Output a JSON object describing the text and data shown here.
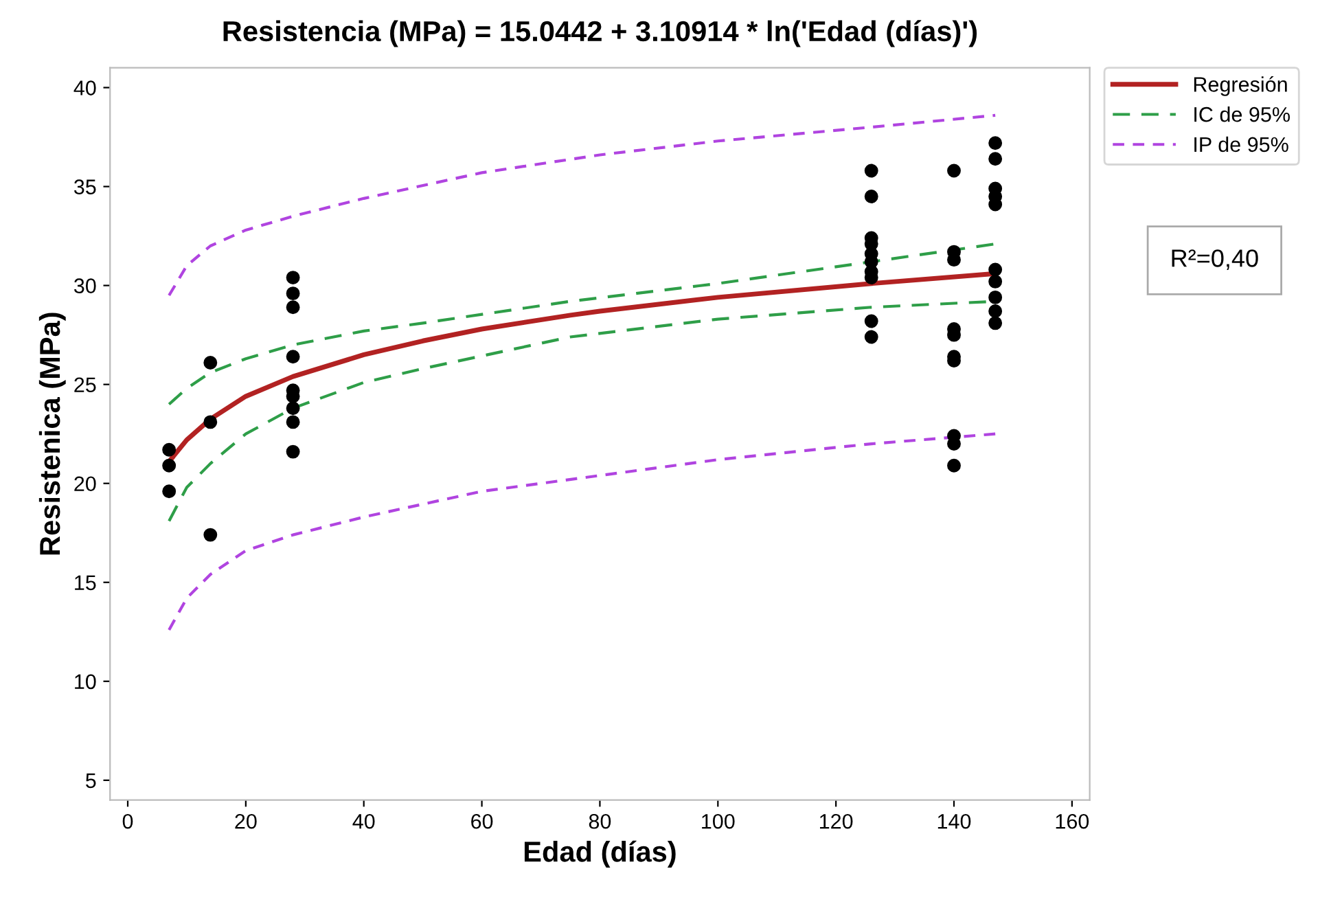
{
  "chart_data": {
    "type": "scatter",
    "title": "Resistencia (MPa) = 15.0442 + 3.10914 * ln('Edad (días)')",
    "xlabel": "Edad (días)",
    "ylabel": "Resistenica (MPa)",
    "xlim": [
      -3,
      163
    ],
    "ylim": [
      4,
      41
    ],
    "xticks": [
      0,
      20,
      40,
      60,
      80,
      100,
      120,
      140,
      160
    ],
    "yticks": [
      5,
      10,
      15,
      20,
      25,
      30,
      35,
      40
    ],
    "grid": false,
    "legend": "top right",
    "annotations": [
      "R²=0,40"
    ],
    "series": [
      {
        "color": "#000000",
        "marker": "circle",
        "x": [
          7,
          7,
          7,
          14,
          14,
          14,
          28,
          28,
          28,
          28,
          28,
          28,
          28,
          28,
          28,
          126,
          126,
          126,
          126,
          126,
          126,
          126,
          126,
          126,
          126,
          140,
          140,
          140,
          140,
          140,
          140,
          140,
          140,
          140,
          140,
          147,
          147,
          147,
          147,
          147,
          147,
          147,
          147,
          147,
          147
        ],
        "values": [
          21.7,
          20.9,
          19.6,
          26.1,
          23.1,
          17.4,
          30.4,
          29.6,
          28.9,
          26.4,
          24.7,
          24.4,
          23.8,
          23.1,
          21.6,
          35.8,
          34.5,
          32.4,
          32.1,
          31.6,
          31.2,
          30.7,
          30.4,
          28.2,
          27.4,
          35.8,
          31.7,
          31.3,
          27.8,
          27.5,
          26.4,
          26.2,
          22.4,
          22.0,
          20.9,
          37.2,
          36.4,
          34.9,
          34.5,
          34.1,
          30.8,
          30.2,
          29.4,
          28.7,
          28.1
        ]
      },
      {
        "type": "line",
        "name": "Regresión",
        "color": "#b22222",
        "line_style": "solid",
        "x": [
          7,
          10,
          14,
          20,
          28,
          40,
          50,
          60,
          75,
          80,
          100,
          126,
          147
        ],
        "values": [
          21.1,
          22.2,
          23.25,
          24.4,
          25.4,
          26.5,
          27.2,
          27.8,
          28.5,
          28.7,
          29.4,
          30.1,
          30.6
        ]
      },
      {
        "type": "line",
        "name": "IC de 95%",
        "color": "#2e9e48",
        "line_style": "dashed",
        "x": [
          7,
          10,
          14,
          20,
          28,
          40,
          50,
          75,
          100,
          126,
          147
        ],
        "values": [
          24.0,
          24.8,
          25.6,
          26.3,
          27.0,
          27.7,
          28.1,
          29.2,
          30.1,
          31.2,
          32.1
        ]
      },
      {
        "type": "line",
        "color": "#2e9e48",
        "line_style": "dashed",
        "x": [
          7,
          10,
          14,
          20,
          28,
          40,
          50,
          75,
          100,
          126,
          147
        ],
        "values": [
          18.1,
          19.8,
          21.0,
          22.5,
          23.8,
          25.1,
          25.8,
          27.4,
          28.3,
          28.9,
          29.2
        ]
      },
      {
        "type": "line",
        "name": "IP de 95%",
        "color": "#b044e0",
        "line_style": "dotted",
        "x": [
          7,
          10,
          14,
          20,
          28,
          40,
          60,
          80,
          100,
          126,
          147
        ],
        "values": [
          29.5,
          31.0,
          32.0,
          32.8,
          33.5,
          34.4,
          35.7,
          36.6,
          37.3,
          38.0,
          38.6
        ]
      },
      {
        "type": "line",
        "color": "#b044e0",
        "line_style": "dotted",
        "x": [
          7,
          10,
          14,
          20,
          28,
          40,
          60,
          80,
          100,
          126,
          147
        ],
        "values": [
          12.6,
          14.2,
          15.4,
          16.6,
          17.4,
          18.3,
          19.6,
          20.4,
          21.2,
          22.0,
          22.5
        ]
      }
    ]
  }
}
